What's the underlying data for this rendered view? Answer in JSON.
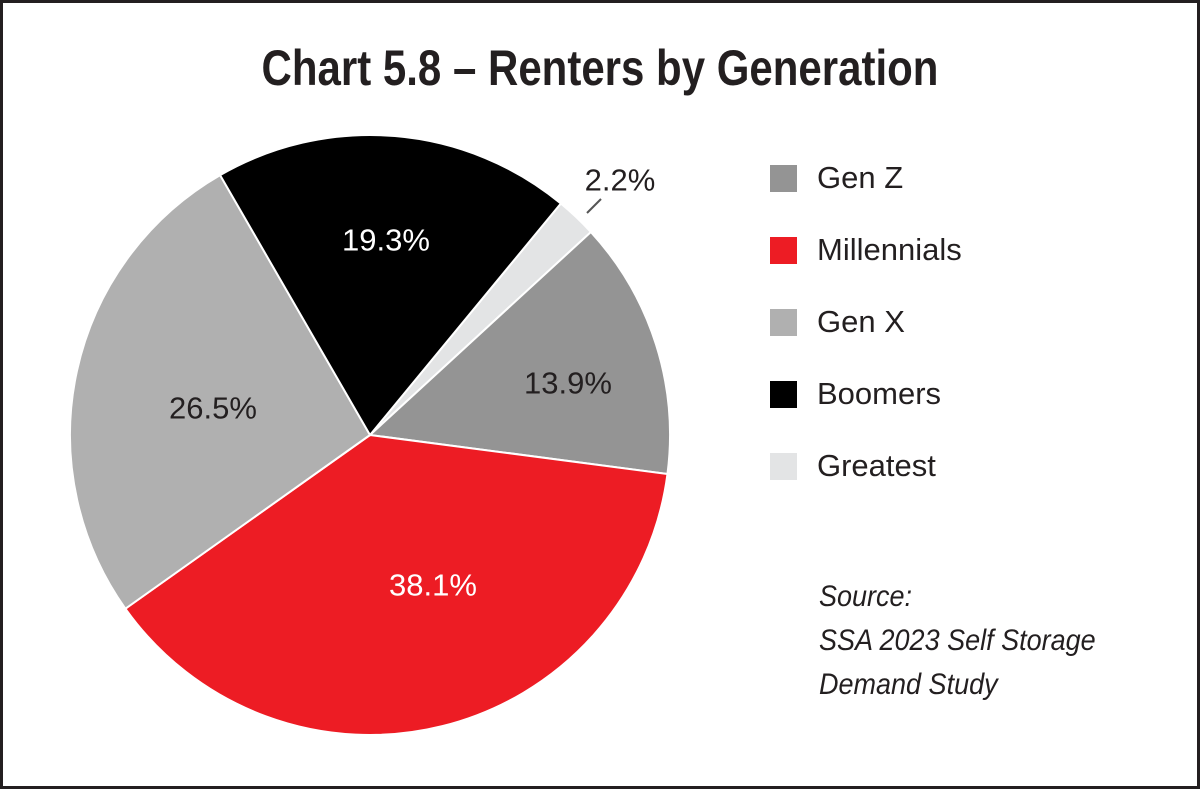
{
  "chart_data": {
    "type": "pie",
    "title": "Chart 5.8 – Renters by Generation",
    "categories": [
      "Gen Z",
      "Millennials",
      "Gen X",
      "Boomers",
      "Greatest"
    ],
    "values": [
      13.9,
      38.1,
      26.5,
      19.3,
      2.2
    ],
    "data_labels": [
      "13.9%",
      "38.1%",
      "26.5%",
      "19.3%",
      "2.2%"
    ],
    "colors": [
      "#949494",
      "#ed1c24",
      "#b0b0b0",
      "#000000",
      "#e3e4e5"
    ],
    "legend_placement": "right",
    "source": [
      "Source:",
      "SSA 2023 Self Storage",
      "Demand Study"
    ]
  }
}
